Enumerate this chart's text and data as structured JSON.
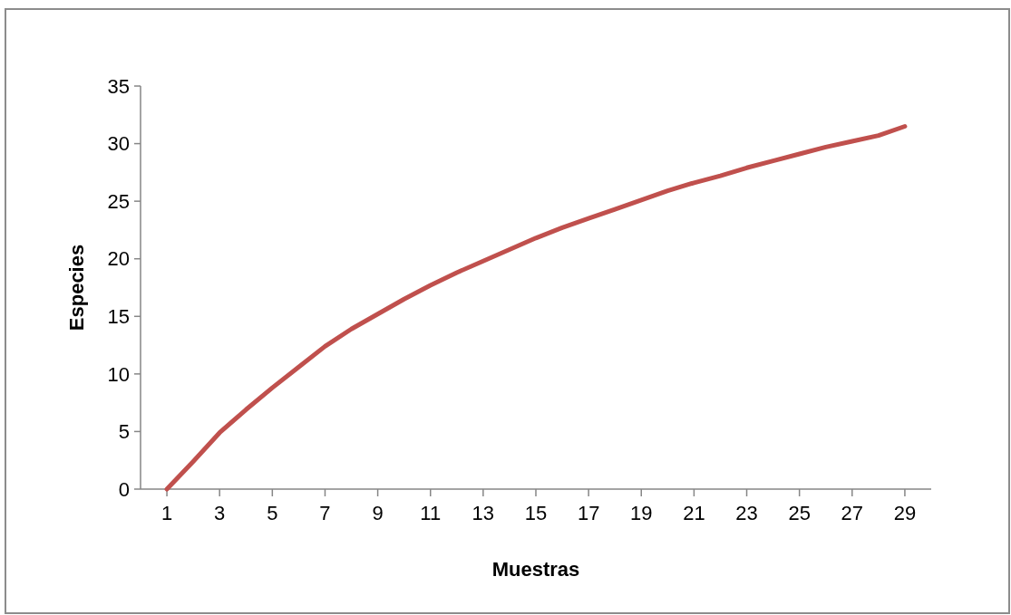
{
  "chart_data": {
    "type": "line",
    "xlabel": "Muestras",
    "ylabel": "Especies",
    "x": [
      1,
      2,
      3,
      4,
      5,
      6,
      7,
      8,
      9,
      10,
      11,
      12,
      13,
      14,
      15,
      16,
      17,
      18,
      19,
      20,
      21,
      22,
      23,
      24,
      25,
      26,
      27,
      28,
      29
    ],
    "xlim": [
      0,
      30
    ],
    "xticks": [
      1,
      3,
      5,
      7,
      9,
      11,
      13,
      15,
      17,
      19,
      21,
      23,
      25,
      27,
      29
    ],
    "series": [
      {
        "color": "#c0504d",
        "values": [
          0,
          2.4,
          4.9,
          6.9,
          8.8,
          10.6,
          12.4,
          13.9,
          15.2,
          16.5,
          17.7,
          18.8,
          19.8,
          20.8,
          21.8,
          22.7,
          23.5,
          24.3,
          25.1,
          25.9,
          26.6,
          27.2,
          27.9,
          28.5,
          29.1,
          29.7,
          30.2,
          30.7,
          31.5
        ]
      }
    ],
    "ylim": [
      0,
      35
    ],
    "yticks": [
      0,
      5,
      10,
      15,
      20,
      25,
      30,
      35
    ],
    "grid": false,
    "marker": "none",
    "line_style": "solid"
  }
}
